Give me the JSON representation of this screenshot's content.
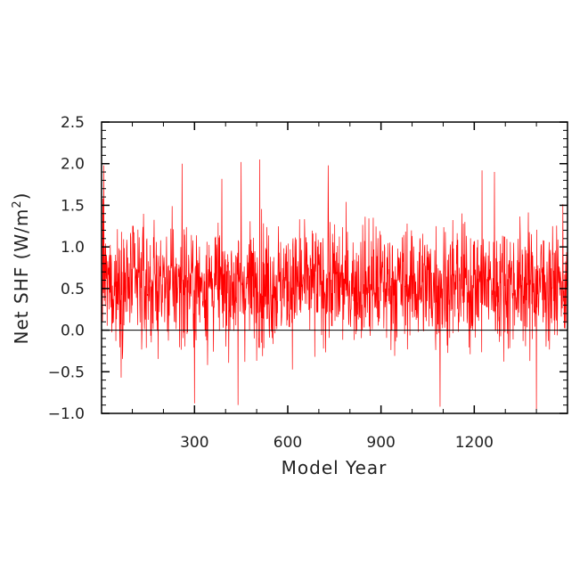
{
  "chart_data": {
    "type": "line",
    "title": "",
    "xlabel": "Model Year",
    "ylabel_main": "Net SHF (W/m",
    "ylabel_sup": "2",
    "ylabel_close": ")",
    "xlim": [
      1,
      1500
    ],
    "ylim": [
      -1.0,
      2.5
    ],
    "x_ticks": [
      300,
      600,
      900,
      1200
    ],
    "y_ticks": [
      -1.0,
      -0.5,
      0.0,
      0.5,
      1.0,
      1.5,
      2.0,
      2.5
    ],
    "y_tick_labels": [
      "−1.0",
      "−0.5",
      "0.0",
      "0.5",
      "1.0",
      "1.5",
      "2.0",
      "2.5"
    ],
    "reference_line_y": 0.0,
    "series": [
      {
        "color": "#ff0000",
        "mean": 0.55,
        "noise_std": 0.4,
        "n_points": 1500,
        "notable_points": [
          {
            "x": 8,
            "y": 1.98
          },
          {
            "x": 260,
            "y": 2.0
          },
          {
            "x": 440,
            "y": 1.98
          },
          {
            "x": 450,
            "y": 2.02
          },
          {
            "x": 510,
            "y": 2.05
          },
          {
            "x": 730,
            "y": 1.98
          },
          {
            "x": 1225,
            "y": 1.92
          },
          {
            "x": 1265,
            "y": 1.9
          },
          {
            "x": 300,
            "y": -0.88
          },
          {
            "x": 440,
            "y": -0.9
          },
          {
            "x": 1090,
            "y": -0.92
          },
          {
            "x": 1400,
            "y": -0.97
          }
        ]
      }
    ]
  }
}
